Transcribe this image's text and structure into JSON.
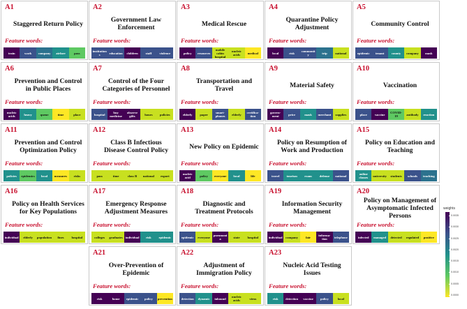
{
  "feature_label": "Feature words:",
  "legend": {
    "title": "weights",
    "ticks": [
      "0.0000",
      "0.0005",
      "0.0010",
      "0.0015",
      "0.0020",
      "0.0025",
      "0.0030",
      "0.0035"
    ]
  },
  "cards": [
    {
      "code": "A1",
      "title": "Staggered Return Policy",
      "words": [
        "train",
        "work",
        "company",
        "airfare",
        "pass"
      ],
      "colors": [
        "#440154",
        "#3b528b",
        "#2c728e",
        "#21918c",
        "#5ec962"
      ]
    },
    {
      "code": "A2",
      "title": "Government Law Enforcement",
      "words": [
        "institutions",
        "education",
        "children",
        "staff",
        "violence"
      ],
      "colors": [
        "#3b528b",
        "#3b528b",
        "#440154",
        "#3b528b",
        "#3b528b"
      ]
    },
    {
      "code": "A3",
      "title": "Medical Rescue",
      "words": [
        "policy",
        "resources",
        "mobile cabin hospital",
        "nucleic acids",
        "medical"
      ],
      "colors": [
        "#440154",
        "#3b528b",
        "#c8e020",
        "#c8e020",
        "#fde725"
      ]
    },
    {
      "code": "A4",
      "title": "Quarantine Policy Adjustment",
      "words": [
        "local",
        "risk",
        "community",
        "trip",
        "national"
      ],
      "colors": [
        "#440154",
        "#3b528b",
        "#3b528b",
        "#2c728e",
        "#c8e020"
      ]
    },
    {
      "code": "A5",
      "title": "Community Control",
      "words": [
        "epidemic",
        "tenant",
        "county",
        "company",
        "mask"
      ],
      "colors": [
        "#3b528b",
        "#3b528b",
        "#21918c",
        "#c8e020",
        "#440154"
      ]
    },
    {
      "code": "A6",
      "title": "Prevention and Control in Public Places",
      "words": [
        "nucleic acids",
        "heavy",
        "queue",
        "time",
        "place"
      ],
      "colors": [
        "#440154",
        "#21918c",
        "#5ec962",
        "#fde725",
        "#c8e020"
      ]
    },
    {
      "code": "A7",
      "title": "Control of the Four Categories of Personnel",
      "words": [
        "hospital",
        "buy medicine",
        "observe gifts",
        "hours",
        "policies"
      ],
      "colors": [
        "#3b528b",
        "#440154",
        "#440154",
        "#c8e020",
        "#c8e020"
      ]
    },
    {
      "code": "A8",
      "title": "Transportation and Travel",
      "words": [
        "elderly",
        "paper",
        "smart-phones",
        "elderly",
        "certifica-tion"
      ],
      "colors": [
        "#440154",
        "#c8e020",
        "#3b528b",
        "#c8e020",
        "#3b528b"
      ]
    },
    {
      "code": "A9",
      "title": "Material Safety",
      "words": [
        "govern-ment",
        "price",
        "mask",
        "merchant",
        "supplies"
      ],
      "colors": [
        "#440154",
        "#3b528b",
        "#21918c",
        "#3b528b",
        "#c8e020"
      ]
    },
    {
      "code": "A10",
      "title": "Vaccination",
      "words": [
        "place",
        "vaccine",
        "COVID-19",
        "antibody",
        "reaction"
      ],
      "colors": [
        "#3b528b",
        "#440154",
        "#5ec962",
        "#c8e020",
        "#21918c"
      ]
    },
    {
      "code": "A11",
      "title": "Prevention and Control Optimization Policy",
      "words": [
        "policies",
        "epidemics",
        "local",
        "measures",
        "risks"
      ],
      "colors": [
        "#21918c",
        "#5ec962",
        "#21918c",
        "#fde725",
        "#c8e020"
      ]
    },
    {
      "code": "A12",
      "title": "Class B Infectious Disease Control Policy",
      "words": [
        "pass",
        "time",
        "class B",
        "national",
        "export"
      ],
      "colors": [
        "#c8e020",
        "#c8e020",
        "#c8e020",
        "#c8e020",
        "#c8e020"
      ]
    },
    {
      "code": "A13",
      "title": "New Policy on Epidemic",
      "words": [
        "nucleic acid",
        "policy",
        "everyone",
        "local",
        "life"
      ],
      "colors": [
        "#440154",
        "#5ec962",
        "#fde725",
        "#21918c",
        "#fde725"
      ]
    },
    {
      "code": "A14",
      "title": "Policy on Resumption of Work and Production",
      "words": [
        "travel",
        "tourism",
        "exam",
        "defense",
        "national"
      ],
      "colors": [
        "#3b528b",
        "#21918c",
        "#21918c",
        "#21918c",
        "#3b528b"
      ]
    },
    {
      "code": "A15",
      "title": "Policy on Education and Teaching",
      "words": [
        "online classes",
        "university",
        "students",
        "schools",
        "teaching"
      ],
      "colors": [
        "#21918c",
        "#c8e020",
        "#c8e020",
        "#3b528b",
        "#2c728e"
      ]
    },
    {
      "code": "A16",
      "title": "Policy on Health Services for Key Populations",
      "words": [
        "individual",
        "elderly",
        "population",
        "fines",
        "hospital"
      ],
      "colors": [
        "#440154",
        "#c8e020",
        "#c8e020",
        "#c8e020",
        "#c8e020"
      ]
    },
    {
      "code": "A17",
      "title": "Emergency Response Adjustment Measures",
      "words": [
        "colleges",
        "graduates",
        "individual",
        "risk",
        "epidemic"
      ],
      "colors": [
        "#c8e020",
        "#c8e020",
        "#440154",
        "#21918c",
        "#21918c"
      ]
    },
    {
      "code": "A18",
      "title": "Diagnostic and Treatment Protocols",
      "words": [
        "epidemic",
        "everyone",
        "pneumonia",
        "state",
        "hospital"
      ],
      "colors": [
        "#3b528b",
        "#c8e020",
        "#440154",
        "#c8e020",
        "#c8e020"
      ]
    },
    {
      "code": "A19",
      "title": "Information Security Management",
      "words": [
        "individual",
        "company",
        "fair",
        "informa-tion",
        "telephone"
      ],
      "colors": [
        "#440154",
        "#c8e020",
        "#fde725",
        "#440154",
        "#3b528b"
      ]
    },
    {
      "code": "A20",
      "title": "Policy on Management of Asymptomatic Infected Persons",
      "words": [
        "infected",
        "managed",
        "detected",
        "regulated",
        "positive"
      ],
      "colors": [
        "#440154",
        "#21918c",
        "#c8e020",
        "#c8e020",
        "#fde725"
      ]
    },
    {
      "code": "A21",
      "title": "Over-Prevention of Epidemic",
      "words": [
        "risk",
        "home",
        "epidemic",
        "policy",
        "prevention"
      ],
      "colors": [
        "#440154",
        "#440154",
        "#3b528b",
        "#3b528b",
        "#fde725"
      ]
    },
    {
      "code": "A22",
      "title": "Adjustment of Immigration Policy",
      "words": [
        "detection",
        "dynamic",
        "inbound",
        "nucleic acids",
        "virus"
      ],
      "colors": [
        "#3b528b",
        "#21918c",
        "#440154",
        "#c8e020",
        "#c8e020"
      ]
    },
    {
      "code": "A23",
      "title": "Nucleic Acid Testing Issues",
      "words": [
        "risk",
        "detection",
        "vaccine",
        "policy",
        "local"
      ],
      "colors": [
        "#21918c",
        "#440154",
        "#440154",
        "#3b528b",
        "#c8e020"
      ]
    }
  ]
}
